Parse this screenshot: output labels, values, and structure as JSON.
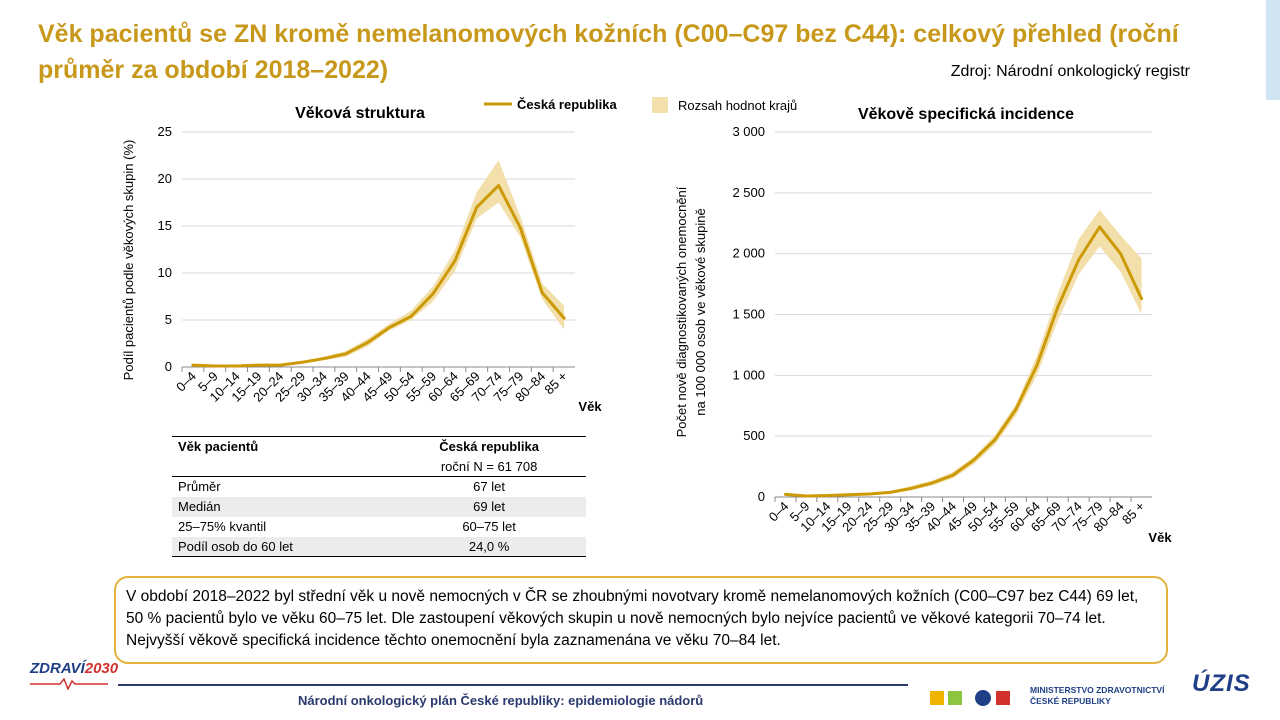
{
  "title": "Věk pacientů se ZN kromě nemelanomových kožních (C00–C97 bez C44): celkový přehled (roční průměr za období 2018–2022)",
  "source": "Zdroj: Národní onkologický registr",
  "legend": {
    "line_label": "Česká republika",
    "band_label": "Rozsah hodnot krajů",
    "line_color": "#cc9a06",
    "band_color": "#f2dfaa"
  },
  "chart_data": [
    {
      "type": "line",
      "title": "Věková struktura",
      "xlabel": "Věk",
      "ylabel": "Podíl pacientů podle věkových skupin (%)",
      "ylim": [
        0,
        25
      ],
      "yticks": [
        "0",
        "5",
        "10",
        "15",
        "20",
        "25"
      ],
      "ytick_values": [
        0,
        5,
        10,
        15,
        20,
        25
      ],
      "grid": "horizontal",
      "categories": [
        "0–4",
        "5–9",
        "10–14",
        "15–19",
        "20–24",
        "25–29",
        "30–34",
        "35–39",
        "40–44",
        "45–49",
        "50–54",
        "55–59",
        "60–64",
        "65–69",
        "70–74",
        "75–79",
        "80–84",
        "85 +"
      ],
      "series": [
        {
          "name": "Česká republika",
          "values": [
            0.2,
            0.1,
            0.1,
            0.2,
            0.2,
            0.5,
            0.9,
            1.4,
            2.6,
            4.2,
            5.4,
            7.8,
            11.3,
            17.0,
            19.3,
            14.8,
            7.9,
            5.2
          ]
        },
        {
          "name": "Rozsah hodnot krajů",
          "lower": [
            0.1,
            0.05,
            0.05,
            0.1,
            0.15,
            0.4,
            0.7,
            1.1,
            2.2,
            3.9,
            5.0,
            7.0,
            10.2,
            15.8,
            17.5,
            13.8,
            7.2,
            4.0
          ],
          "upper": [
            0.3,
            0.2,
            0.2,
            0.3,
            0.3,
            0.6,
            1.1,
            1.7,
            3.0,
            4.6,
            6.0,
            8.6,
            12.4,
            18.6,
            22.0,
            16.0,
            8.9,
            6.5
          ]
        }
      ]
    },
    {
      "type": "line",
      "title": "Věkově specifická incidence",
      "xlabel": "Věk",
      "ylabel_line1": "Počet nově diagnostikovaných onemocnění",
      "ylabel_line2": "na 100 000 osob ve věkové skupině",
      "ylim": [
        0,
        3000
      ],
      "yticks": [
        "0",
        "500",
        "1 000",
        "1 500",
        "2 000",
        "2 500",
        "3 000"
      ],
      "ytick_values": [
        0,
        500,
        1000,
        1500,
        2000,
        2500,
        3000
      ],
      "grid": "horizontal",
      "categories": [
        "0–4",
        "5–9",
        "10–14",
        "15–19",
        "20–24",
        "25–29",
        "30–34",
        "35–39",
        "40–44",
        "45–49",
        "50–54",
        "55–59",
        "60–64",
        "65–69",
        "70–74",
        "75–79",
        "80–84",
        "85 +"
      ],
      "series": [
        {
          "name": "Česká republika",
          "values": [
            22,
            8,
            12,
            18,
            25,
            38,
            70,
            115,
            180,
            305,
            470,
            720,
            1080,
            1560,
            1950,
            2220,
            2000,
            1630
          ]
        },
        {
          "name": "Rozsah hodnot krajů",
          "lower": [
            12,
            4,
            6,
            10,
            15,
            28,
            55,
            95,
            155,
            270,
            430,
            670,
            1000,
            1450,
            1830,
            2060,
            1850,
            1500
          ],
          "upper": [
            32,
            15,
            20,
            28,
            35,
            50,
            90,
            135,
            205,
            330,
            510,
            760,
            1160,
            1670,
            2120,
            2360,
            2150,
            1960
          ]
        }
      ]
    }
  ],
  "stats_table": {
    "col1_header": "Věk pacientů",
    "col2_header": "Česká republika",
    "col2_subheader": "roční N = 61 708",
    "rows": [
      {
        "label": "Průměr",
        "value": "67 let"
      },
      {
        "label": "Medián",
        "value": "69 let"
      },
      {
        "label": "25–75% kvantil",
        "value": "60–75 let"
      },
      {
        "label": "Podíl osob do 60 let",
        "value": "24,0 %"
      }
    ]
  },
  "summary": "V období 2018–2022 byl střední věk u nově nemocných v ČR se zhoubnými novotvary kromě nemelanomových kožních (C00–C97 bez C44) 69 let, 50 % pacientů bylo ve věku 60–75 let. Dle zastoupení věkových skupin u nově nemocných bylo nejvíce pacientů ve věkové kategorii 70–74 let. Nejvyšší věkově specifická incidence těchto onemocnění byla zaznamenána ve věku 70–84 let.",
  "footer": "Národní onkologický plán České republiky: epidemiologie nádorů",
  "logos": {
    "zdravi_main": "ZDRAVÍ",
    "zdravi_year": "2030",
    "ministry_line1": "MINISTERSTVO ZDRAVOTNICTVÍ",
    "ministry_line2": "ČESKÉ REPUBLIKY",
    "uzis": "ÚZIS"
  }
}
